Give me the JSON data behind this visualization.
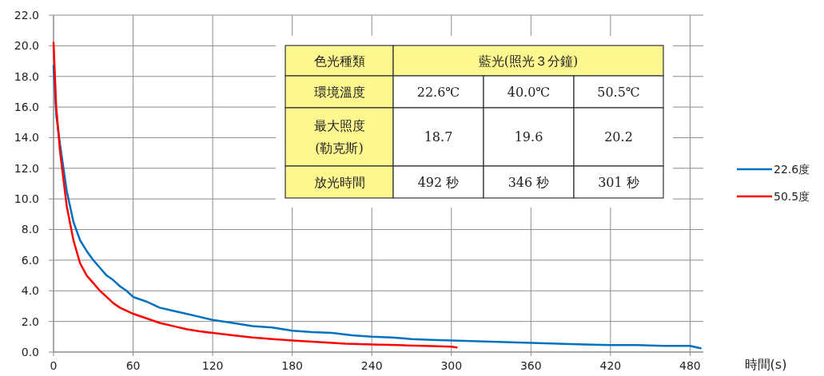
{
  "chart_data": {
    "type": "line",
    "xlabel": "時間(s)",
    "xlim": [
      0,
      490
    ],
    "xticks": [
      0,
      60,
      120,
      180,
      240,
      300,
      360,
      420,
      480
    ],
    "ylim": [
      0,
      22
    ],
    "yticks": [
      {
        "value": 0,
        "label": "0.0"
      },
      {
        "value": 2,
        "label": "2.0"
      },
      {
        "value": 4,
        "label": "4.0"
      },
      {
        "value": 6,
        "label": "6.0"
      },
      {
        "value": 8,
        "label": "8.0"
      },
      {
        "value": 10,
        "label": "10.0"
      },
      {
        "value": 12,
        "label": "12.0"
      },
      {
        "value": 14,
        "label": "14.0"
      },
      {
        "value": 16,
        "label": "16.0"
      },
      {
        "value": 18,
        "label": "18.0"
      },
      {
        "value": 20,
        "label": "20.0"
      },
      {
        "value": 22,
        "label": "22.0"
      }
    ],
    "grid": true,
    "legend": "right",
    "marker": "none",
    "line_style": "solid",
    "series": [
      {
        "name": "22.6度",
        "color": "#0070c0",
        "x": [
          0,
          2,
          5,
          10,
          15,
          20,
          25,
          30,
          35,
          40,
          45,
          50,
          55,
          60,
          70,
          80,
          90,
          100,
          110,
          120,
          135,
          150,
          165,
          180,
          195,
          210,
          225,
          240,
          255,
          270,
          285,
          300,
          320,
          340,
          360,
          380,
          400,
          420,
          440,
          460,
          480,
          488
        ],
        "values": [
          18.7,
          15.5,
          13.5,
          10.5,
          8.5,
          7.3,
          6.6,
          6.0,
          5.5,
          5.0,
          4.7,
          4.3,
          4.0,
          3.6,
          3.3,
          2.9,
          2.7,
          2.5,
          2.3,
          2.1,
          1.9,
          1.7,
          1.6,
          1.4,
          1.3,
          1.25,
          1.1,
          1.0,
          0.95,
          0.85,
          0.8,
          0.75,
          0.7,
          0.65,
          0.6,
          0.55,
          0.5,
          0.45,
          0.45,
          0.4,
          0.4,
          0.25
        ]
      },
      {
        "name": "50.5度",
        "color": "#ff0000",
        "x": [
          0,
          2,
          5,
          10,
          15,
          20,
          25,
          30,
          35,
          40,
          45,
          50,
          60,
          70,
          80,
          90,
          100,
          110,
          120,
          135,
          150,
          165,
          180,
          200,
          220,
          240,
          260,
          280,
          300,
          304
        ],
        "values": [
          20.2,
          16,
          13.0,
          9.5,
          7.3,
          5.8,
          5.0,
          4.5,
          4.0,
          3.6,
          3.2,
          2.9,
          2.5,
          2.2,
          1.9,
          1.7,
          1.5,
          1.35,
          1.25,
          1.1,
          0.95,
          0.85,
          0.75,
          0.65,
          0.55,
          0.5,
          0.45,
          0.4,
          0.35,
          0.3
        ]
      }
    ],
    "annotations": [
      "色光種類",
      "藍光(照光３分鐘)",
      "環境溫度",
      "22.6℃",
      "40.0℃",
      "50.5℃",
      "最大照度\n(勒克斯)",
      "18.7",
      "19.6",
      "20.2",
      "放光時間",
      "492 秒",
      "346 秒",
      "301 秒"
    ]
  }
}
